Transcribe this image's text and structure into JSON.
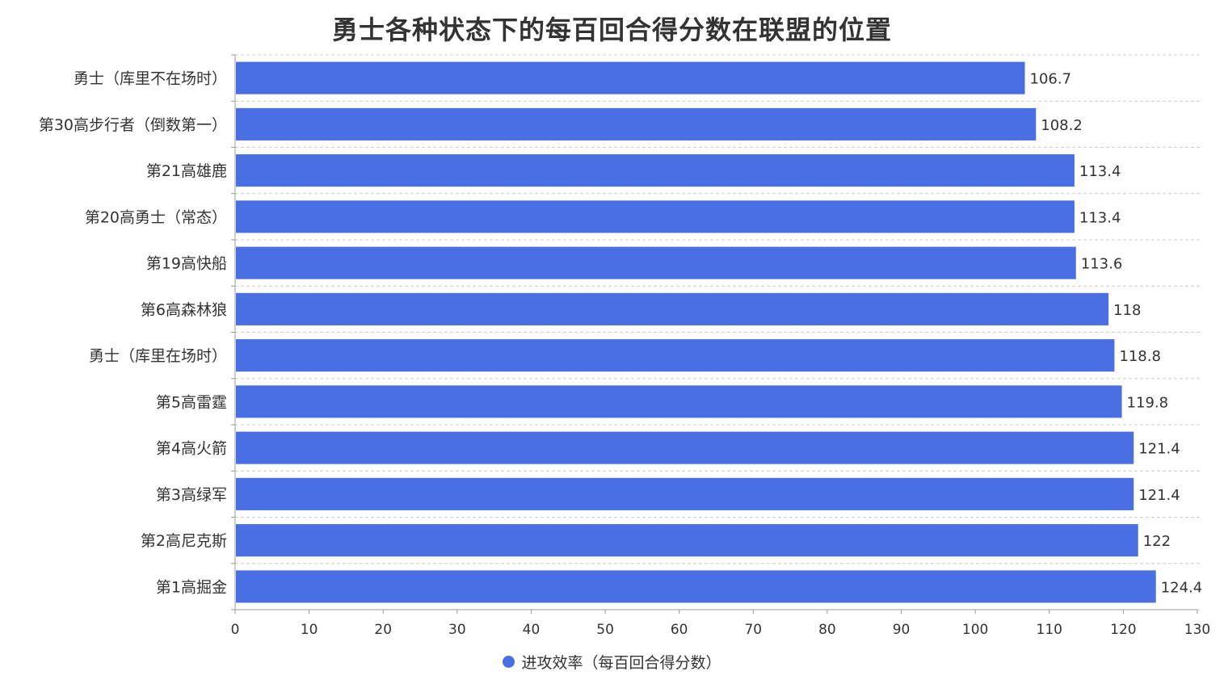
{
  "chart_data": {
    "type": "bar",
    "orientation": "horizontal",
    "title": "勇士各种状态下的每百回合得分数在联盟的位置",
    "categories": [
      "勇士（库里不在场时）",
      "第30高步行者（倒数第一）",
      "第21高雄鹿",
      "第20高勇士（常态）",
      "第19高快船",
      "第6高森林狼",
      "勇士（库里在场时）",
      "第5高雷霆",
      "第4高火箭",
      "第3高绿军",
      "第2高尼克斯",
      "第1高掘金"
    ],
    "series": [
      {
        "name": "进攻效率（每百回合得分数）",
        "values": [
          106.7,
          108.2,
          113.4,
          113.4,
          113.6,
          118,
          118.8,
          119.8,
          121.4,
          121.4,
          122,
          124.4
        ],
        "labels": [
          "106.7",
          "108.2",
          "113.4",
          "113.4",
          "113.6",
          "118",
          "118.8",
          "119.8",
          "121.4",
          "121.4",
          "122",
          "124.4"
        ]
      }
    ],
    "xlim": [
      0,
      130
    ],
    "xticks": [
      0,
      10,
      20,
      30,
      40,
      50,
      60,
      70,
      80,
      90,
      100,
      110,
      120,
      130
    ],
    "grid": "horizontal dashed",
    "legend_position": "bottom-center",
    "colors": {
      "bar": "#4a6fe3",
      "text": "#333333",
      "axis": "#999999",
      "grid": "#cccccc"
    }
  }
}
